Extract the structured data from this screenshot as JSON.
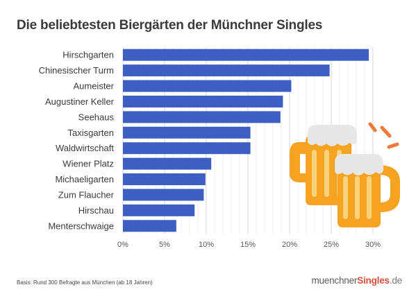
{
  "chart_data": {
    "type": "bar",
    "orientation": "horizontal",
    "title": "Die beliebtesten Biergärten der Münchner Singles",
    "categories": [
      "Hirschgarten",
      "Chinesischer Turm",
      "Aumeister",
      "Augustiner Keller",
      "Seehaus",
      "Taxisgarten",
      "Waldwirtschaft",
      "Wiener Platz",
      "Michaeligarten",
      "Zum Flaucher",
      "Hirschau",
      "Menterschwaige"
    ],
    "values": [
      29.5,
      24.8,
      20.2,
      19.2,
      18.9,
      15.3,
      15.3,
      10.6,
      9.9,
      9.7,
      8.6,
      6.4
    ],
    "xlim": [
      0,
      30
    ],
    "xticks": [
      "0%",
      "5%",
      "10%",
      "15%",
      "20%",
      "25%",
      "30%"
    ],
    "grid": true,
    "bar_color": "#3d5fc4"
  },
  "footer": {
    "note": "Basis: Rund 300 Befragte aus München (ab 18 Jahren)",
    "brand_prefix": "muenchner",
    "brand_accent": "Singles",
    "brand_tld": ".de",
    "brand_accent_color": "#d9503c"
  },
  "illustration": {
    "icon": "beer-mugs-icon"
  }
}
